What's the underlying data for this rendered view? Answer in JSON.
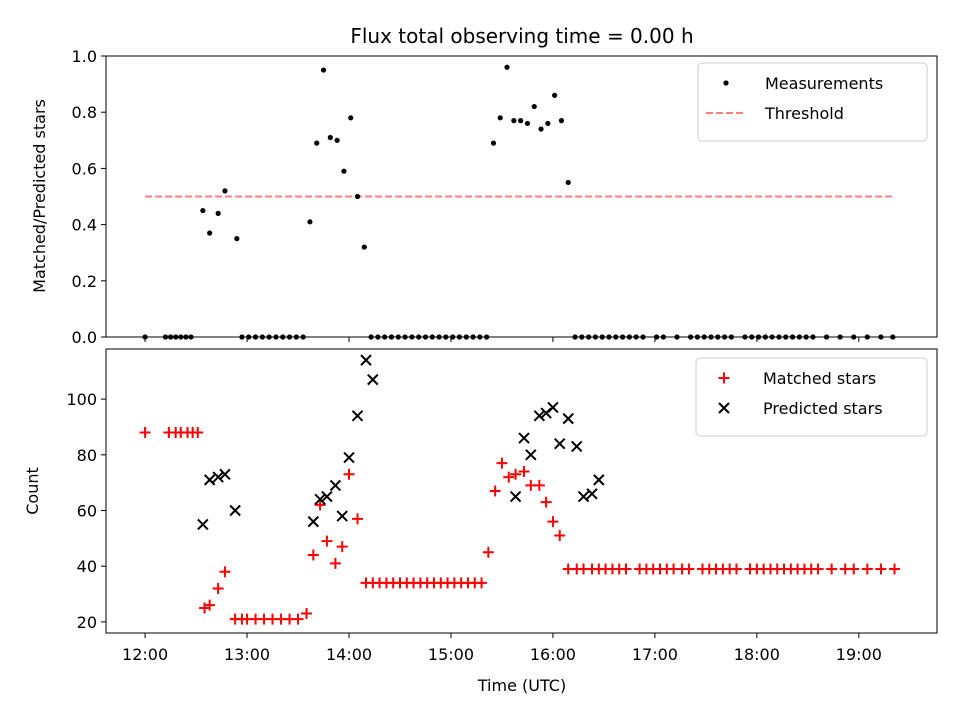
{
  "chart_data": [
    {
      "type": "scatter",
      "title": "Flux total observing time = 0.00 h",
      "ylabel": "Matched/Predicted stars",
      "ylim": [
        0,
        1.0
      ],
      "yticks": [
        "0.0",
        "0.2",
        "0.4",
        "0.6",
        "0.8",
        "1.0"
      ],
      "xlim": [
        "11:37",
        "19:46"
      ],
      "legend": {
        "placement": "top-right",
        "entries": [
          "Measurements",
          "Threshold"
        ]
      },
      "threshold": {
        "name": "Threshold",
        "value": 0.5,
        "x_range": [
          "12:00",
          "19:20"
        ],
        "color": "#ff8080"
      },
      "series": [
        {
          "name": "Measurements",
          "color": "#000000",
          "x": [
            "12:00",
            "12:12",
            "12:15",
            "12:18",
            "12:21",
            "12:24",
            "12:27",
            "12:34",
            "12:38",
            "12:43",
            "12:47",
            "12:54",
            "12:57",
            "13:01",
            "13:05",
            "13:09",
            "13:13",
            "13:17",
            "13:21",
            "13:25",
            "13:29",
            "13:33",
            "13:37",
            "13:41",
            "13:45",
            "13:49",
            "13:53",
            "13:57",
            "14:01",
            "14:05",
            "14:09",
            "14:13",
            "14:17",
            "14:21",
            "14:25",
            "14:29",
            "14:33",
            "14:37",
            "14:41",
            "14:45",
            "14:49",
            "14:53",
            "14:57",
            "15:01",
            "15:05",
            "15:09",
            "15:13",
            "15:17",
            "15:21",
            "15:25",
            "15:29",
            "15:33",
            "15:37",
            "15:41",
            "15:45",
            "15:49",
            "15:53",
            "15:57",
            "16:01",
            "16:05",
            "16:09",
            "16:13",
            "16:17",
            "16:21",
            "16:25",
            "16:29",
            "16:33",
            "16:37",
            "16:41",
            "16:45",
            "16:49",
            "16:53",
            "17:01",
            "17:05",
            "17:13",
            "17:21",
            "17:25",
            "17:29",
            "17:33",
            "17:37",
            "17:41",
            "17:45",
            "17:53",
            "17:57",
            "18:01",
            "18:05",
            "18:09",
            "18:13",
            "18:17",
            "18:21",
            "18:25",
            "18:29",
            "18:33",
            "18:41",
            "18:49",
            "18:57",
            "19:05",
            "19:13",
            "19:20"
          ],
          "y": [
            0,
            0,
            0,
            0,
            0,
            0,
            0,
            0.45,
            0.37,
            0.44,
            0.52,
            0.35,
            0,
            0,
            0,
            0,
            0,
            0,
            0,
            0,
            0,
            0,
            0.41,
            0.69,
            0.95,
            0.71,
            0.7,
            0.59,
            0.78,
            0.5,
            0.32,
            0,
            0,
            0,
            0,
            0,
            0,
            0,
            0,
            0,
            0,
            0,
            0,
            0,
            0,
            0,
            0,
            0,
            0,
            0.69,
            0.78,
            0.96,
            0.77,
            0.77,
            0.76,
            0.82,
            0.74,
            0.76,
            0.86,
            0.77,
            0.55,
            0,
            0,
            0,
            0,
            0,
            0,
            0,
            0,
            0,
            0,
            0,
            0,
            0,
            0,
            0,
            0,
            0,
            0,
            0,
            0,
            0,
            0,
            0,
            0,
            0,
            0,
            0,
            0,
            0,
            0,
            0,
            0,
            0,
            0,
            0,
            0,
            0,
            0
          ]
        }
      ]
    },
    {
      "type": "scatter",
      "xlabel": "Time (UTC)",
      "ylabel": "Count",
      "ylim": [
        16,
        118
      ],
      "yticks": [
        "20",
        "40",
        "60",
        "80",
        "100"
      ],
      "xlim": [
        "11:37",
        "19:46"
      ],
      "xticks": [
        "12:00",
        "13:00",
        "14:00",
        "15:00",
        "16:00",
        "17:00",
        "18:00",
        "19:00"
      ],
      "legend": {
        "placement": "top-right",
        "entries": [
          "Matched stars",
          "Predicted stars"
        ]
      },
      "series": [
        {
          "name": "Matched stars",
          "marker": "plus",
          "color": "#ff0000",
          "x": [
            "12:00",
            "12:14",
            "12:18",
            "12:21",
            "12:25",
            "12:28",
            "12:31",
            "12:35",
            "12:38",
            "12:43",
            "12:47",
            "12:53",
            "12:57",
            "13:00",
            "13:05",
            "13:10",
            "13:15",
            "13:20",
            "13:25",
            "13:30",
            "13:35",
            "13:39",
            "13:43",
            "13:47",
            "13:52",
            "13:56",
            "14:00",
            "14:05",
            "14:10",
            "14:14",
            "14:18",
            "14:22",
            "14:26",
            "14:30",
            "14:34",
            "14:38",
            "14:42",
            "14:46",
            "14:50",
            "14:54",
            "14:58",
            "15:02",
            "15:06",
            "15:10",
            "15:14",
            "15:18",
            "15:22",
            "15:26",
            "15:30",
            "15:34",
            "15:38",
            "15:43",
            "15:47",
            "15:52",
            "15:56",
            "16:00",
            "16:04",
            "16:09",
            "16:14",
            "16:18",
            "16:23",
            "16:27",
            "16:31",
            "16:35",
            "16:39",
            "16:43",
            "16:51",
            "16:55",
            "16:59",
            "17:03",
            "17:07",
            "17:11",
            "17:16",
            "17:20",
            "17:28",
            "17:32",
            "17:36",
            "17:40",
            "17:44",
            "17:48",
            "17:56",
            "18:00",
            "18:04",
            "18:08",
            "18:12",
            "18:16",
            "18:20",
            "18:24",
            "18:28",
            "18:32",
            "18:36",
            "18:44",
            "18:52",
            "18:57",
            "19:05",
            "19:13",
            "19:21"
          ],
          "y": [
            88,
            88,
            88,
            88,
            88,
            88,
            88,
            25,
            26,
            32,
            38,
            21,
            21,
            21,
            21,
            21,
            21,
            21,
            21,
            21,
            23,
            44,
            62,
            49,
            41,
            47,
            73,
            57,
            34,
            34,
            34,
            34,
            34,
            34,
            34,
            34,
            34,
            34,
            34,
            34,
            34,
            34,
            34,
            34,
            34,
            34,
            45,
            67,
            77,
            72,
            73,
            74,
            69,
            69,
            63,
            56,
            51,
            39,
            39,
            39,
            39,
            39,
            39,
            39,
            39,
            39,
            39,
            39,
            39,
            39,
            39,
            39,
            39,
            39,
            39,
            39,
            39,
            39,
            39,
            39,
            39,
            39,
            39,
            39,
            39,
            39,
            39,
            39,
            39,
            39,
            39,
            39,
            39,
            39,
            39,
            39,
            39
          ]
        },
        {
          "name": "Predicted stars",
          "marker": "x",
          "color": "#000000",
          "x": [
            "12:34",
            "12:38",
            "12:43",
            "12:47",
            "12:53",
            "13:39",
            "13:43",
            "13:47",
            "13:52",
            "13:56",
            "14:00",
            "14:05",
            "14:10",
            "14:14",
            "15:38",
            "15:43",
            "15:47",
            "15:52",
            "15:56",
            "16:00",
            "16:04",
            "16:09",
            "16:14",
            "16:18",
            "16:23",
            "16:27"
          ],
          "y": [
            55,
            71,
            72,
            73,
            60,
            56,
            64,
            65,
            69,
            58,
            79,
            94,
            114,
            107,
            65,
            86,
            80,
            94,
            95,
            97,
            84,
            93,
            83,
            65,
            66,
            71
          ]
        }
      ]
    }
  ]
}
